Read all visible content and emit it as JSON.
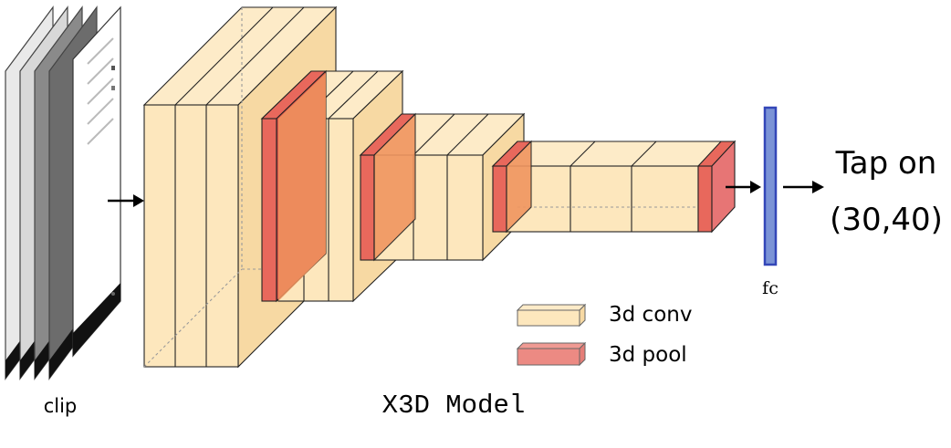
{
  "input": {
    "label": "clip",
    "frame_count": 4
  },
  "model": {
    "title": "X3D Model"
  },
  "fc": {
    "label": "fc"
  },
  "output": {
    "line1": "Tap on",
    "line2": "(30,40)"
  },
  "legend": {
    "items": [
      {
        "label": "3d conv",
        "kind": "conv"
      },
      {
        "label": "3d pool",
        "kind": "pool"
      }
    ]
  },
  "colors": {
    "conv_fill": "#fde7bd",
    "conv_side": "#f7d9a3",
    "pool_fill": "#e8685c",
    "pool_side": "#d9554b",
    "pool_inner": "#f0955f",
    "fc_fill": "#7b93d6",
    "fc_stroke": "#3346b8",
    "edge": "#222222"
  }
}
